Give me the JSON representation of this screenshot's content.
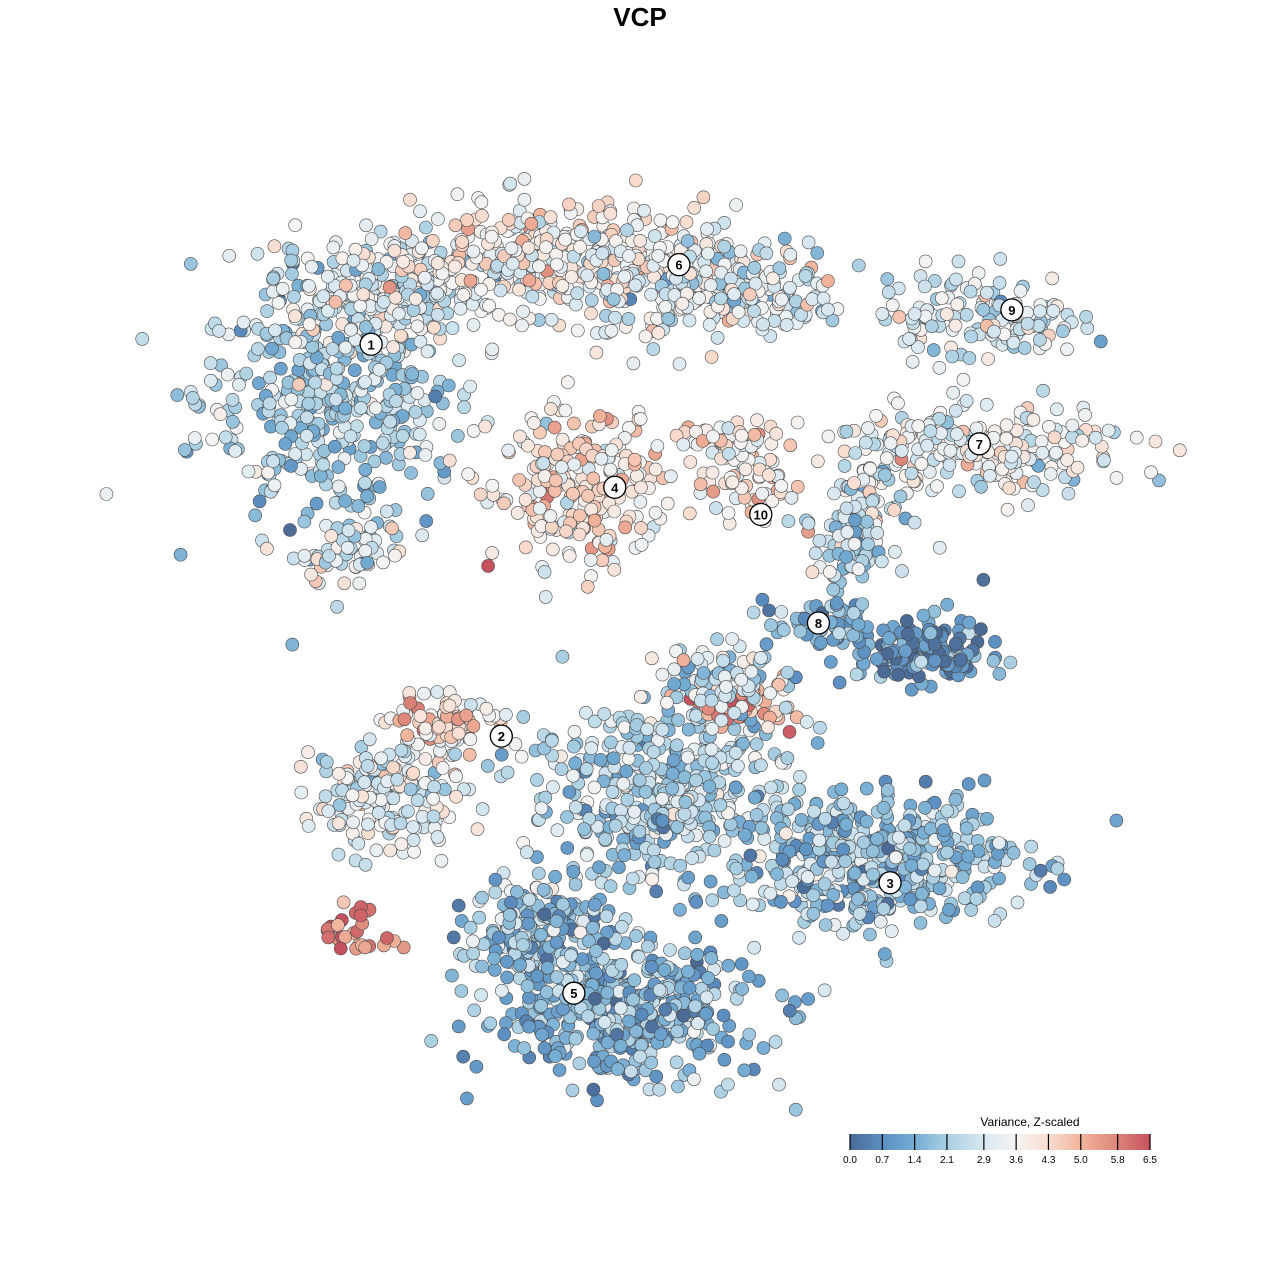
{
  "chart_data": {
    "type": "scatter",
    "title": "VCP",
    "xlabel": "",
    "ylabel": "",
    "xlim": [
      0,
      100
    ],
    "ylim": [
      0,
      100
    ],
    "axes_visible": false,
    "grid": false,
    "color_variable": "Variance, Z-scaled",
    "colorbar": {
      "title": "Variance, Z-scaled",
      "ticks": [
        "0.0",
        "0.7",
        "1.4",
        "2.1",
        "2.9",
        "3.6",
        "4.3",
        "5.0",
        "5.8",
        "6.5"
      ],
      "range": [
        0,
        6.5
      ],
      "placement": "bottom-right",
      "colors": [
        [
          0,
          "#4b6a96"
        ],
        [
          0.7,
          "#5c8fc2"
        ],
        [
          1.4,
          "#74acd3"
        ],
        [
          2.1,
          "#a9cfe2"
        ],
        [
          2.9,
          "#d9e8f1"
        ],
        [
          3.6,
          "#f5f4f3"
        ],
        [
          4.3,
          "#f9ddd0"
        ],
        [
          5.0,
          "#f2b49c"
        ],
        [
          5.8,
          "#dc8578"
        ],
        [
          6.5,
          "#c5515f"
        ]
      ]
    },
    "cluster_labels": [
      {
        "label": "1",
        "x": 18.4,
        "y": 82.4
      },
      {
        "label": "2",
        "x": 32.4,
        "y": 39.1
      },
      {
        "label": "3",
        "x": 74.2,
        "y": 22.9
      },
      {
        "label": "4",
        "x": 44.6,
        "y": 66.6
      },
      {
        "label": "5",
        "x": 40.2,
        "y": 10.7
      },
      {
        "label": "6",
        "x": 51.5,
        "y": 91.2
      },
      {
        "label": "7",
        "x": 83.8,
        "y": 71.4
      },
      {
        "label": "8",
        "x": 66.5,
        "y": 51.6
      },
      {
        "label": "9",
        "x": 87.3,
        "y": 86.2
      },
      {
        "label": "10",
        "x": 60.3,
        "y": 63.6
      }
    ],
    "point_groups": [
      {
        "cluster": "1",
        "x": 14.0,
        "y": 76.2,
        "sx": 12.9,
        "sy": 12.2,
        "n": 420,
        "mean": 2.2
      },
      {
        "cluster": "1",
        "x": 19.4,
        "y": 88.4,
        "sx": 10.8,
        "sy": 5.5,
        "n": 220,
        "mean": 2.9
      },
      {
        "cluster": "1",
        "x": 16.1,
        "y": 59.1,
        "sx": 5.4,
        "sy": 3.3,
        "n": 60,
        "mean": 3.0
      },
      {
        "cluster": "6",
        "x": 38.7,
        "y": 91.7,
        "sx": 17.2,
        "sy": 5.5,
        "n": 380,
        "mean": 3.6
      },
      {
        "cluster": "6",
        "x": 55.9,
        "y": 88.4,
        "sx": 12.9,
        "sy": 5.5,
        "n": 220,
        "mean": 3.0
      },
      {
        "cluster": "4",
        "x": 40.9,
        "y": 66.3,
        "sx": 8.6,
        "sy": 7.7,
        "n": 230,
        "mean": 4.0
      },
      {
        "cluster": "10",
        "x": 59.1,
        "y": 67.4,
        "sx": 4.8,
        "sy": 5.0,
        "n": 60,
        "mean": 3.8
      },
      {
        "cluster": "10",
        "x": 57.0,
        "y": 71.8,
        "sx": 5.4,
        "sy": 1.8,
        "n": 40,
        "mean": 4.0
      },
      {
        "cluster": "9",
        "x": 83.9,
        "y": 85.6,
        "sx": 9.7,
        "sy": 4.4,
        "n": 140,
        "mean": 2.9
      },
      {
        "cluster": "7",
        "x": 83.9,
        "y": 70.7,
        "sx": 15.1,
        "sy": 4.4,
        "n": 230,
        "mean": 3.3
      },
      {
        "cluster": "7",
        "x": 72.0,
        "y": 64.1,
        "sx": 4.3,
        "sy": 4.4,
        "n": 60,
        "mean": 2.8
      },
      {
        "cluster": "8",
        "x": 77.4,
        "y": 48.6,
        "sx": 6.5,
        "sy": 3.3,
        "n": 170,
        "mean": 0.8
      },
      {
        "cluster": "8",
        "x": 69.4,
        "y": 59.7,
        "sx": 3.2,
        "sy": 4.4,
        "n": 70,
        "mean": 2.3
      },
      {
        "cluster": "8",
        "x": 66.7,
        "y": 51.4,
        "sx": 5.4,
        "sy": 2.2,
        "n": 50,
        "mean": 1.5
      },
      {
        "cluster": "2",
        "x": 20.4,
        "y": 33.1,
        "sx": 7.5,
        "sy": 5.5,
        "n": 180,
        "mean": 3.1
      },
      {
        "cluster": "2",
        "x": 26.9,
        "y": 40.9,
        "sx": 5.4,
        "sy": 2.8,
        "n": 80,
        "mean": 4.3
      },
      {
        "cluster": "",
        "x": 49.5,
        "y": 33.1,
        "sx": 12.9,
        "sy": 9.4,
        "n": 450,
        "mean": 2.3
      },
      {
        "cluster": "",
        "x": 58.6,
        "y": 42.5,
        "sx": 4.8,
        "sy": 2.2,
        "n": 50,
        "mean": 5.2
      },
      {
        "cluster": "",
        "x": 55.9,
        "y": 45.3,
        "sx": 7.5,
        "sy": 3.3,
        "n": 100,
        "mean": 2.6
      },
      {
        "cluster": "3",
        "x": 73.1,
        "y": 25.4,
        "sx": 14.0,
        "sy": 6.6,
        "n": 450,
        "mean": 1.9
      },
      {
        "cluster": "5",
        "x": 45.2,
        "y": 8.8,
        "sx": 13.4,
        "sy": 6.6,
        "n": 450,
        "mean": 1.6
      },
      {
        "cluster": "5",
        "x": 36.6,
        "y": 17.7,
        "sx": 7.5,
        "sy": 4.4,
        "n": 180,
        "mean": 1.9
      },
      {
        "cluster": "",
        "x": 17.2,
        "y": 17.1,
        "sx": 3.8,
        "sy": 2.8,
        "n": 30,
        "mean": 6.0
      }
    ]
  }
}
